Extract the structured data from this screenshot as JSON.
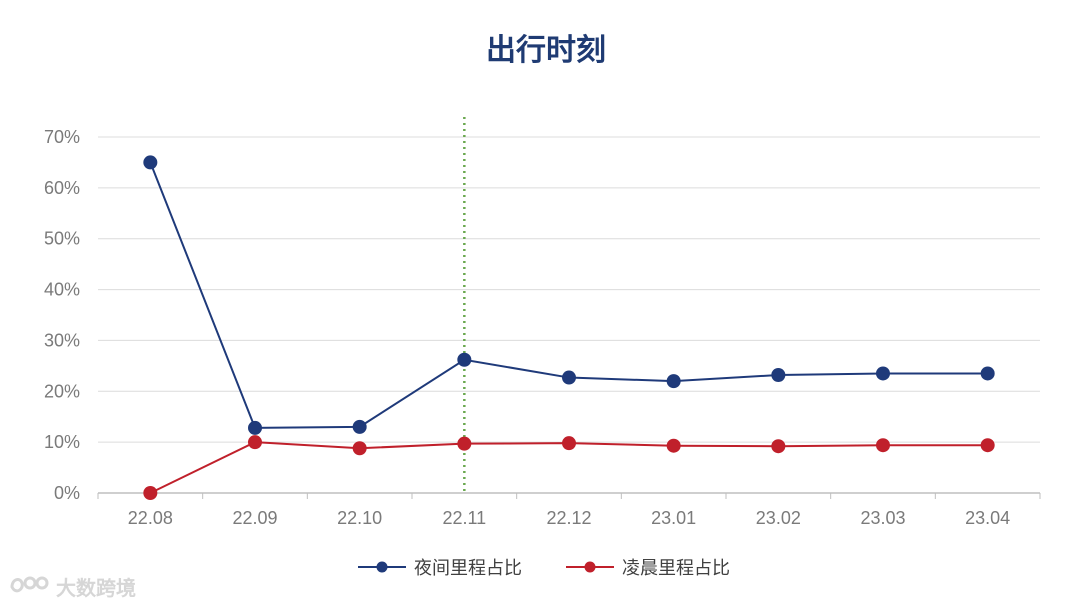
{
  "chart_data": {
    "type": "line",
    "title": "出行时刻",
    "categories": [
      "22.08",
      "22.09",
      "22.10",
      "22.11",
      "22.12",
      "23.01",
      "23.02",
      "23.03",
      "23.04"
    ],
    "yticks": [
      "0%",
      "10%",
      "20%",
      "30%",
      "40%",
      "50%",
      "60%",
      "70%"
    ],
    "ylim": [
      0,
      70
    ],
    "grid": true,
    "legend_position": "bottom",
    "reference_line": {
      "category": "22.11",
      "color": "#6aa84f",
      "style": "dotted"
    },
    "series": [
      {
        "name": "夜间里程占比",
        "color": "#1f3a7a",
        "values": [
          65,
          12.8,
          13,
          26.2,
          22.7,
          22,
          23.2,
          23.5,
          23.5
        ]
      },
      {
        "name": "凌晨里程占比",
        "color": "#c0202b",
        "values": [
          0,
          10,
          8.8,
          9.7,
          9.8,
          9.3,
          9.2,
          9.4,
          9.4
        ]
      }
    ]
  },
  "watermark": {
    "text": "大数跨境",
    "icon": "brand-logo-icon"
  }
}
